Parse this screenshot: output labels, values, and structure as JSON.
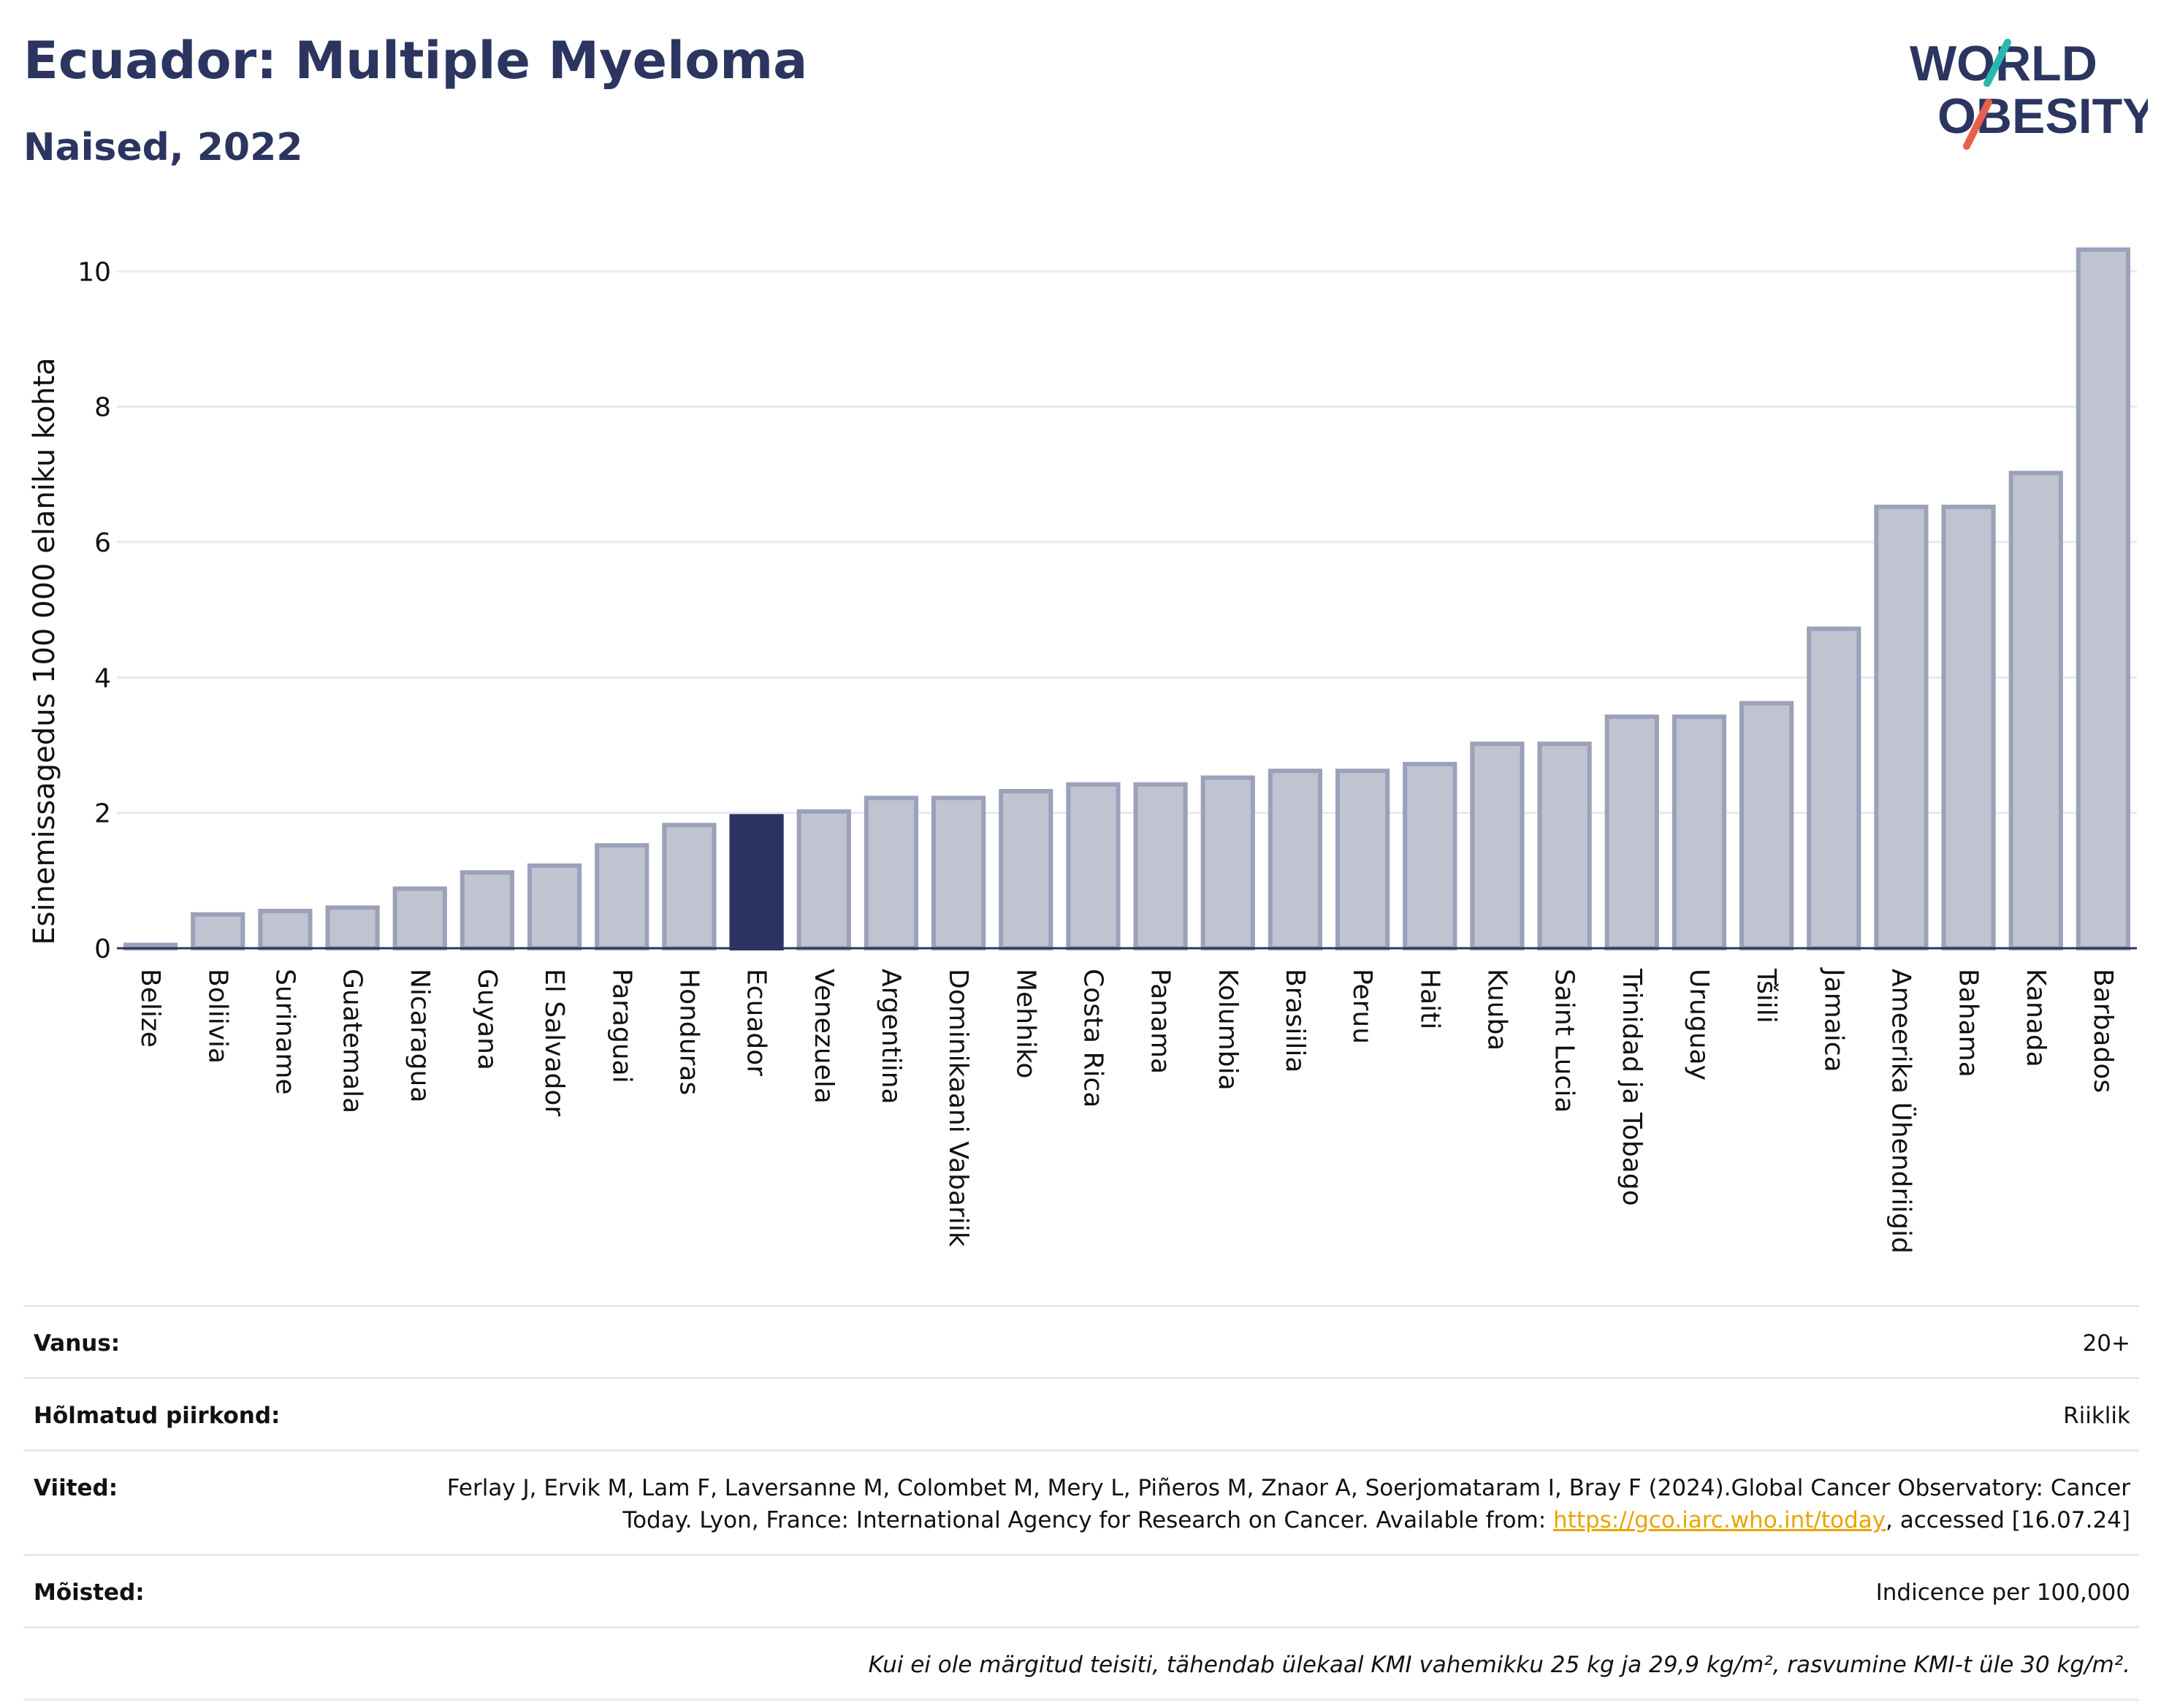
{
  "header": {
    "title": "Ecuador: Multiple Myeloma",
    "subtitle": "Naised, 2022"
  },
  "logo": {
    "line1": "WORLD",
    "line2": "OBESITY",
    "accent_colors": [
      "#2ab7b0",
      "#e8604c"
    ]
  },
  "chart_data": {
    "type": "bar",
    "ylabel": "Esinemissagedus 100 000 elaniku kohta",
    "ylim": [
      0,
      10.5
    ],
    "yticks": [
      0,
      2,
      4,
      6,
      8,
      10
    ],
    "grid": true,
    "highlight": "Ecuador",
    "colors": {
      "bar": "#c0c4d1",
      "bar_edge": "#9ba1b8",
      "highlight": "#2b3560",
      "grid": "#e8eaf0"
    },
    "categories": [
      "Belize",
      "Boliivia",
      "Suriname",
      "Guatemala",
      "Nicaragua",
      "Guyana",
      "El Salvador",
      "Paraguai",
      "Honduras",
      "Ecuador",
      "Venezuela",
      "Argentiina",
      "Dominikaani Vabariik",
      "Mehhiko",
      "Costa Rica",
      "Panama",
      "Kolumbia",
      "Brasiilia",
      "Peruu",
      "Haiti",
      "Kuuba",
      "Saint Lucia",
      "Trinidad ja Tobago",
      "Uruguay",
      "Tšiili",
      "Jamaica",
      "Ameerika Ühendriigid",
      "Bahama",
      "Kanada",
      "Barbados"
    ],
    "values": [
      0.05,
      0.5,
      0.55,
      0.6,
      0.88,
      1.12,
      1.22,
      1.52,
      1.82,
      1.95,
      2.02,
      2.22,
      2.22,
      2.32,
      2.42,
      2.42,
      2.52,
      2.62,
      2.62,
      2.72,
      3.02,
      3.02,
      3.42,
      3.42,
      3.62,
      4.72,
      6.52,
      6.52,
      7.02,
      10.32
    ]
  },
  "meta": {
    "age_label": "Vanus:",
    "age_value": "20+",
    "region_label": "Hõlmatud piirkond:",
    "region_value": "Riiklik",
    "refs_label": "Viited:",
    "refs_text": "Ferlay J, Ervik M, Lam F, Laversanne M, Colombet M, Mery L, Piñeros M, Znaor A, Soerjomataram I, Bray F (2024).Global Cancer Observatory: Cancer Today. Lyon, France: International Agency for Research on Cancer. Available from: ",
    "refs_link": "https://gco.iarc.who.int/today",
    "refs_tail": ", accessed [16.07.24]",
    "defs_label": "Mõisted:",
    "defs_value": "Indicence per 100,000",
    "footnote": "Kui ei ole märgitud teisiti, tähendab ülekaal KMI vahemikku 25 kg ja 29,9 kg/m², rasvumine KMI-t üle 30 kg/m²."
  }
}
